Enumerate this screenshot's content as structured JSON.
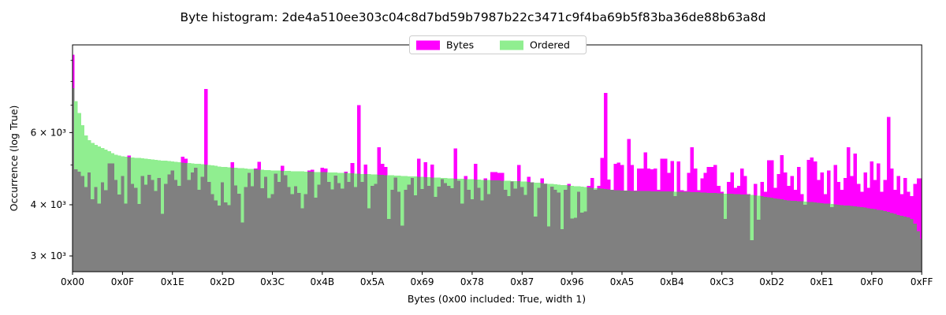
{
  "title": "Byte histogram: 2de4a510ee303c04c8d7bd59b7987b22c3471c9f4ba69b5f83ba36de88b63a8d",
  "legend": {
    "items": [
      {
        "label": "Bytes",
        "color": "#FF00FF"
      },
      {
        "label": "Ordered",
        "color": "#90EE90"
      }
    ]
  },
  "axes": {
    "x_label": "Bytes (0x00 included: True, width 1)",
    "y_label": "Occurrence (log True)",
    "y_scale": "log",
    "x_range": [
      0,
      255
    ],
    "y_range": [
      2745,
      9800
    ],
    "x_ticks": [
      {
        "byte": 0,
        "label": "0x00"
      },
      {
        "byte": 15,
        "label": "0x0F"
      },
      {
        "byte": 30,
        "label": "0x1E"
      },
      {
        "byte": 45,
        "label": "0x2D"
      },
      {
        "byte": 60,
        "label": "0x3C"
      },
      {
        "byte": 75,
        "label": "0x4B"
      },
      {
        "byte": 90,
        "label": "0x5A"
      },
      {
        "byte": 105,
        "label": "0x69"
      },
      {
        "byte": 120,
        "label": "0x78"
      },
      {
        "byte": 135,
        "label": "0x87"
      },
      {
        "byte": 150,
        "label": "0x96"
      },
      {
        "byte": 165,
        "label": "0xA5"
      },
      {
        "byte": 180,
        "label": "0xB4"
      },
      {
        "byte": 195,
        "label": "0xC3"
      },
      {
        "byte": 210,
        "label": "0xD2"
      },
      {
        "byte": 225,
        "label": "0xE1"
      },
      {
        "byte": 240,
        "label": "0xF0"
      },
      {
        "byte": 255,
        "label": "0xFF"
      }
    ],
    "y_ticks_major": [
      {
        "value": 3000,
        "label": "3 × 10³"
      },
      {
        "value": 4000,
        "label": "4 × 10³"
      },
      {
        "value": 6000,
        "label": "6 × 10³"
      }
    ],
    "y_ticks_minor": [
      5000,
      7000,
      8000,
      9000
    ]
  },
  "chart_data": {
    "type": "bar",
    "title": "Byte histogram: 2de4a510ee303c04c8d7bd59b7987b22c3471c9f4ba69b5f83ba36de88b63a8d",
    "xlabel": "Bytes (0x00 included: True, width 1)",
    "ylabel": "Occurrence (log True)",
    "x_is_byte_value": "0..255",
    "bar_width": 1,
    "overlap_color": "#808080",
    "legend_position": "upper center",
    "grid": false,
    "series": [
      {
        "name": "Bytes",
        "color": "#FF00FF",
        "values": [
          9300,
          4880,
          4820,
          4700,
          4420,
          4800,
          4130,
          4420,
          4030,
          4540,
          4340,
          5050,
          5050,
          4600,
          4235,
          4700,
          4030,
          5270,
          4500,
          4400,
          4020,
          4700,
          4480,
          4730,
          4600,
          4320,
          4650,
          3800,
          4500,
          4740,
          4850,
          4600,
          4450,
          5240,
          5180,
          4600,
          4800,
          4920,
          4350,
          4680,
          7660,
          4550,
          4250,
          4100,
          3980,
          4540,
          4050,
          3990,
          5080,
          4460,
          4260,
          3620,
          4420,
          4780,
          4440,
          4900,
          5090,
          4390,
          4680,
          4150,
          4250,
          4760,
          4550,
          4980,
          4720,
          4420,
          4250,
          4440,
          4270,
          3920,
          4250,
          4850,
          4870,
          4160,
          4480,
          4920,
          4900,
          4550,
          4360,
          4710,
          4520,
          4380,
          4820,
          4550,
          5060,
          4420,
          7000,
          4550,
          5010,
          3920,
          4450,
          4500,
          5520,
          5040,
          4950,
          3690,
          4350,
          4660,
          4300,
          3560,
          4350,
          4480,
          4650,
          4220,
          5180,
          4370,
          5080,
          4450,
          5010,
          4180,
          4430,
          4620,
          4520,
          4450,
          4390,
          5485,
          4580,
          4030,
          4700,
          4350,
          4130,
          5040,
          4400,
          4100,
          4640,
          4250,
          4810,
          4810,
          4780,
          4790,
          4350,
          4200,
          4560,
          4380,
          5000,
          4420,
          4230,
          4680,
          4540,
          3740,
          4400,
          4640,
          4500,
          3540,
          4430,
          4350,
          4280,
          3490,
          4350,
          4500,
          3700,
          3720,
          4300,
          3830,
          3850,
          4450,
          4650,
          4350,
          4450,
          5200,
          7490,
          4610,
          4350,
          5040,
          5070,
          5000,
          4330,
          5790,
          5000,
          4330,
          4900,
          4900,
          5370,
          4900,
          4880,
          4900,
          4350,
          5180,
          5180,
          4780,
          5115,
          4200,
          5100,
          4340,
          4320,
          4780,
          5520,
          4900,
          4340,
          4640,
          4780,
          4950,
          4950,
          5000,
          4450,
          4300,
          3690,
          4550,
          4800,
          4400,
          4450,
          4900,
          4700,
          4250,
          3280,
          4500,
          3680,
          4550,
          4300,
          5140,
          5140,
          4400,
          4750,
          5290,
          4800,
          4450,
          4700,
          4350,
          4950,
          4250,
          4000,
          5150,
          5220,
          5100,
          4600,
          4800,
          4250,
          4850,
          3950,
          5000,
          4550,
          4350,
          4650,
          5520,
          4700,
          5330,
          4500,
          4300,
          4800,
          4400,
          5100,
          4600,
          5050,
          4300,
          4600,
          6550,
          4900,
          4350,
          4700,
          4250,
          4650,
          4300,
          4200,
          4500,
          4640,
          4640
        ]
      },
      {
        "name": "Ordered",
        "color": "#90EE90",
        "values": [
          7700,
          7150,
          6700,
          6250,
          5900,
          5750,
          5660,
          5600,
          5550,
          5500,
          5450,
          5400,
          5350,
          5300,
          5270,
          5250,
          5240,
          5230,
          5220,
          5210,
          5200,
          5190,
          5180,
          5170,
          5160,
          5150,
          5140,
          5130,
          5120,
          5110,
          5100,
          5090,
          5080,
          5070,
          5060,
          5060,
          5050,
          5040,
          5030,
          5020,
          5010,
          5000,
          4990,
          4975,
          4960,
          4950,
          4945,
          4940,
          4930,
          4925,
          4915,
          4910,
          4900,
          4895,
          4890,
          4880,
          4875,
          4870,
          4865,
          4855,
          4850,
          4847,
          4844,
          4841,
          4838,
          4835,
          4832,
          4829,
          4826,
          4823,
          4820,
          4817,
          4814,
          4811,
          4808,
          4805,
          4802,
          4799,
          4796,
          4793,
          4790,
          4785,
          4781,
          4776,
          4772,
          4767,
          4763,
          4758,
          4754,
          4749,
          4745,
          4740,
          4736,
          4731,
          4727,
          4722,
          4718,
          4713,
          4709,
          4704,
          4700,
          4695,
          4691,
          4686,
          4682,
          4677,
          4673,
          4668,
          4664,
          4659,
          4655,
          4650,
          4645,
          4640,
          4636,
          4633,
          4629,
          4625,
          4622,
          4618,
          4614,
          4611,
          4607,
          4603,
          4600,
          4596,
          4592,
          4589,
          4585,
          4581,
          4578,
          4574,
          4570,
          4567,
          4563,
          4560,
          4553,
          4545,
          4538,
          4531,
          4523,
          4516,
          4509,
          4501,
          4494,
          4487,
          4479,
          4472,
          4465,
          4457,
          4450,
          4442,
          4434,
          4426,
          4418,
          4410,
          4402,
          4394,
          4386,
          4378,
          4370,
          4362,
          4354,
          4346,
          4338,
          4330,
          4329,
          4327,
          4326,
          4324,
          4323,
          4321,
          4320,
          4318,
          4317,
          4315,
          4314,
          4312,
          4311,
          4309,
          4308,
          4306,
          4305,
          4303,
          4302,
          4300,
          4296,
          4292,
          4289,
          4285,
          4281,
          4277,
          4274,
          4270,
          4266,
          4263,
          4259,
          4255,
          4251,
          4248,
          4244,
          4240,
          4237,
          4233,
          4230,
          4218,
          4206,
          4195,
          4183,
          4171,
          4159,
          4147,
          4136,
          4124,
          4112,
          4100,
          4094,
          4089,
          4083,
          4077,
          4071,
          4066,
          4060,
          4053,
          4045,
          4038,
          4030,
          4023,
          4015,
          4008,
          4000,
          3993,
          3986,
          3979,
          3971,
          3964,
          3957,
          3950,
          3938,
          3925,
          3913,
          3900,
          3890,
          3875,
          3860,
          3840,
          3820,
          3800,
          3780,
          3760,
          3745,
          3730,
          3690,
          3600,
          3450,
          3300
        ]
      }
    ]
  }
}
